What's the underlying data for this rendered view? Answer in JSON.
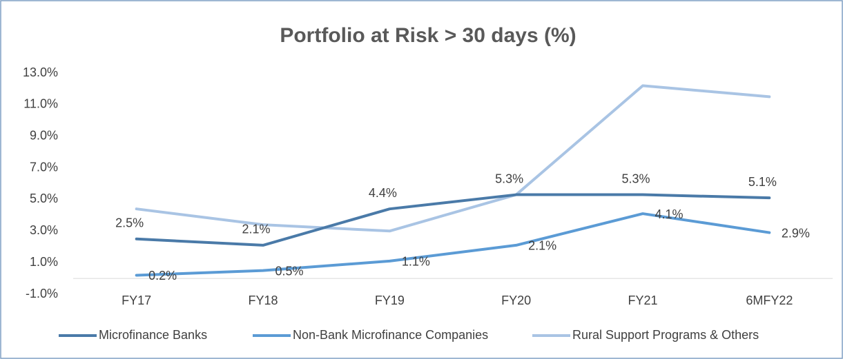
{
  "chart_data": {
    "type": "line",
    "title": "Portfolio at Risk > 30 days (%)",
    "categories": [
      "FY17",
      "FY18",
      "FY19",
      "FY20",
      "FY21",
      "6MFY22"
    ],
    "series": [
      {
        "name": "Microfinance Banks",
        "color": "#4a7aa8",
        "values": [
          2.5,
          2.1,
          4.4,
          5.3,
          5.3,
          5.1
        ],
        "value_labels": [
          "2.5%",
          "2.1%",
          "4.4%",
          "5.3%",
          "5.3%",
          "5.1%"
        ]
      },
      {
        "name": "Non-Bank Microfinance Companies",
        "color": "#5b9bd5",
        "values": [
          0.2,
          0.5,
          1.1,
          2.1,
          4.1,
          2.9
        ],
        "value_labels": [
          "0.2%",
          "0.5%",
          "1.1%",
          "2.1%",
          "4.1%",
          "2.9%"
        ]
      },
      {
        "name": "Rural Support Programs & Others",
        "color": "#a9c4e4",
        "values": [
          4.4,
          3.4,
          3.0,
          5.3,
          12.2,
          11.5
        ]
      }
    ],
    "ylim": [
      -1,
      13
    ],
    "yticks": [
      {
        "value": -1,
        "label": "-1.0%"
      },
      {
        "value": 1,
        "label": "1.0%"
      },
      {
        "value": 3,
        "label": "3.0%"
      },
      {
        "value": 5,
        "label": "5.0%"
      },
      {
        "value": 7,
        "label": "7.0%"
      },
      {
        "value": 9,
        "label": "9.0%"
      },
      {
        "value": 11,
        "label": "11.0%"
      },
      {
        "value": 13,
        "label": "13.0%"
      }
    ],
    "grid": false,
    "legend": "bottom"
  }
}
